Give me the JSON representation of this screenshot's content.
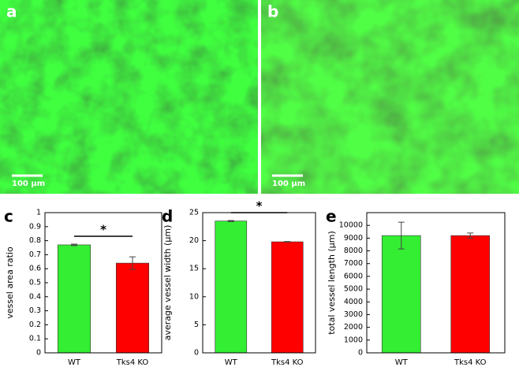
{
  "images": [
    {
      "label": "a",
      "scale_bar": "100 µm"
    },
    {
      "label": "b",
      "scale_bar": "100 µm"
    }
  ],
  "chart_data": [
    {
      "type": "bar",
      "panel": "c",
      "ylabel": "vessel area ratio",
      "categories": [
        "WT",
        "Tks4 KO"
      ],
      "values": [
        0.77,
        0.64
      ],
      "errors": [
        0.005,
        0.045
      ],
      "colors": [
        "#33ee33",
        "#ff0000"
      ],
      "annotation": "*",
      "ylim": [
        0,
        1
      ],
      "yticks": [
        0,
        0.1,
        0.2,
        0.3,
        0.4,
        0.5,
        0.6,
        0.7,
        0.8,
        0.9,
        1
      ]
    },
    {
      "type": "bar",
      "panel": "d",
      "ylabel": "average vessel width (µm)",
      "categories": [
        "WT",
        "Tks4 KO"
      ],
      "values": [
        23.5,
        19.8
      ],
      "errors": [
        0.1,
        0.05
      ],
      "colors": [
        "#33ee33",
        "#ff0000"
      ],
      "annotation": "*",
      "ylim": [
        0,
        25
      ],
      "yticks": [
        0,
        5,
        10,
        15,
        20,
        25
      ]
    },
    {
      "type": "bar",
      "panel": "e",
      "ylabel": "total vessel length (µm)",
      "categories": [
        "WT",
        "Tks4 KO"
      ],
      "values": [
        9200,
        9200
      ],
      "errors": [
        1050,
        200
      ],
      "colors": [
        "#33ee33",
        "#ff0000"
      ],
      "ylim": [
        0,
        11000
      ],
      "yticks": [
        0,
        1000,
        2000,
        3000,
        4000,
        5000,
        6000,
        7000,
        8000,
        9000,
        10000
      ]
    }
  ]
}
